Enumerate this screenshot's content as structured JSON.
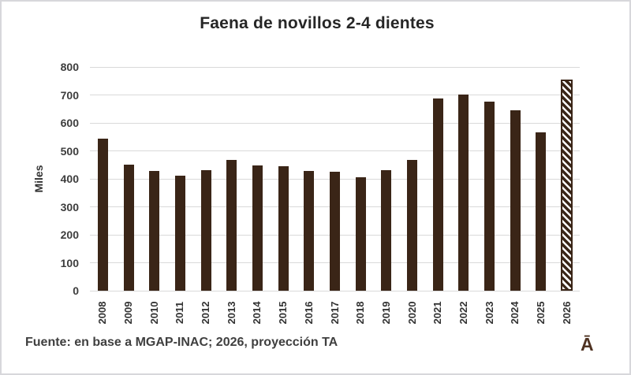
{
  "chart_data": {
    "type": "bar",
    "title": "Faena de novillos 2-4 dientes",
    "xlabel": "",
    "ylabel": "Miles",
    "categories": [
      "2008",
      "2009",
      "2010",
      "2011",
      "2012",
      "2013",
      "2014",
      "2015",
      "2016",
      "2017",
      "2018",
      "2019",
      "2020",
      "2021",
      "2022",
      "2023",
      "2024",
      "2025",
      "2026"
    ],
    "values": [
      545,
      451,
      427,
      412,
      430,
      469,
      447,
      445,
      427,
      424,
      406,
      431,
      468,
      686,
      702,
      675,
      646,
      566,
      755
    ],
    "ylim": [
      0,
      800
    ],
    "yticks": [
      0,
      100,
      200,
      300,
      400,
      500,
      600,
      700,
      800
    ],
    "grid": true,
    "legend": "none",
    "bar_color": "#3a2517",
    "gridline_color": "#d9d9d9",
    "projection_category": "2026",
    "projection_style": "diagonal-hatch"
  },
  "footer": {
    "source_note": "Fuente: en base a MGAP-INAC; 2026, proyección TA",
    "watermark": "Ā"
  }
}
